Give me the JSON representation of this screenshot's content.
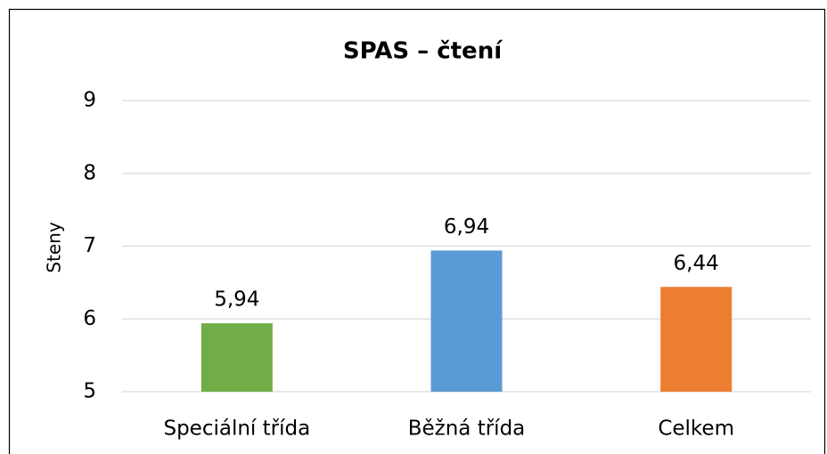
{
  "chart_data": {
    "type": "bar",
    "title": "SPAS – čtení",
    "y_label": "Steny",
    "categories": [
      "Speciální třída",
      "Běžná třída",
      "Celkem"
    ],
    "values": [
      5.94,
      6.94,
      6.44
    ],
    "value_labels": [
      "5,94",
      "6,94",
      "6,44"
    ],
    "colors": [
      "#70ad47",
      "#5b9bd5",
      "#ed7d31"
    ],
    "ylim": [
      5,
      9
    ],
    "yticks": [
      5,
      6,
      7,
      8,
      9
    ],
    "grid": true
  }
}
